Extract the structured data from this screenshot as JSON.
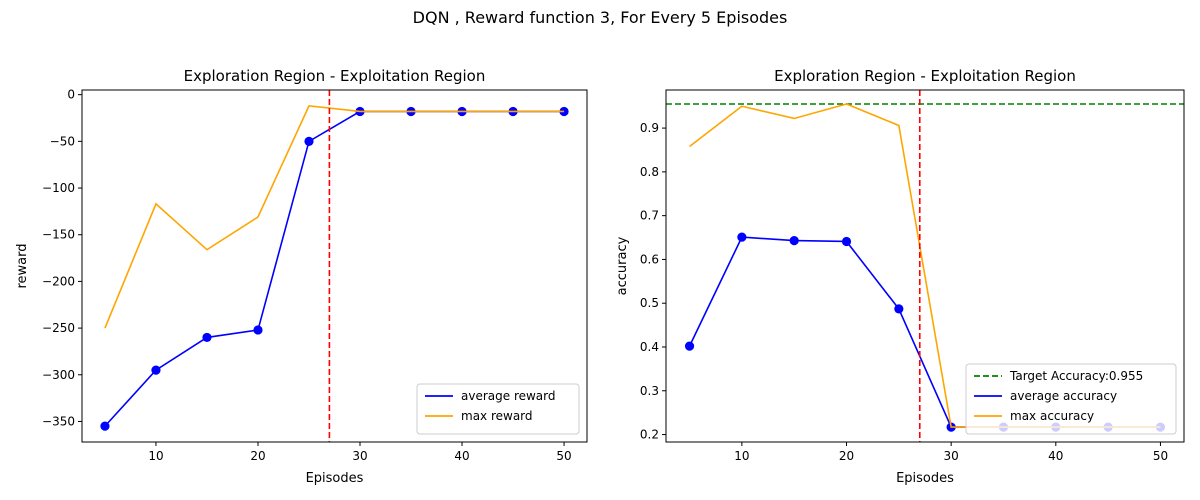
{
  "suptitle": "DQN , Reward function 3, For Every 5 Episodes",
  "chart_data": [
    {
      "type": "line",
      "title": "Exploration Region - Exploitation Region",
      "xlabel": "Episodes",
      "ylabel": "reward",
      "x": [
        5,
        10,
        15,
        20,
        25,
        30,
        35,
        40,
        45,
        50
      ],
      "xlim": [
        2.75,
        52.25
      ],
      "ylim": [
        -372,
        5
      ],
      "xticks": [
        10,
        20,
        30,
        40,
        50
      ],
      "yticks": [
        0,
        -50,
        -100,
        -150,
        -200,
        -250,
        -300,
        -350
      ],
      "grid": false,
      "legend": "lower-right",
      "series": [
        {
          "name": "average reward",
          "color": "#0000ff",
          "markers": true,
          "values": [
            -355,
            -295,
            -260,
            -252,
            -50,
            -18,
            -18,
            -18,
            -18,
            -18
          ]
        },
        {
          "name": "max reward",
          "color": "#ffa500",
          "markers": false,
          "values": [
            -250,
            -117,
            -166,
            -131,
            -12,
            -18,
            -18,
            -18,
            -18,
            -18
          ]
        }
      ],
      "vlines": [
        {
          "x": 27,
          "color": "#ff0000",
          "style": "dashed"
        }
      ],
      "hlines": []
    },
    {
      "type": "line",
      "title": "Exploration Region - Exploitation Region",
      "xlabel": "Episodes",
      "ylabel": "accuracy",
      "x": [
        5,
        10,
        15,
        20,
        25,
        30,
        35,
        40,
        45,
        50
      ],
      "xlim": [
        2.75,
        52.25
      ],
      "ylim": [
        0.183,
        0.987
      ],
      "xticks": [
        10,
        20,
        30,
        40,
        50
      ],
      "yticks": [
        0.2,
        0.3,
        0.4,
        0.5,
        0.6,
        0.7,
        0.8,
        0.9
      ],
      "grid": false,
      "legend": "lower-right",
      "series": [
        {
          "name": "average accuracy",
          "color": "#0000ff",
          "markers": true,
          "values": [
            0.402,
            0.651,
            0.643,
            0.641,
            0.487,
            0.217,
            0.217,
            0.217,
            0.217,
            0.217
          ]
        },
        {
          "name": "max accuracy",
          "color": "#ffa500",
          "markers": false,
          "values": [
            0.858,
            0.95,
            0.922,
            0.955,
            0.906,
            0.217,
            0.217,
            0.217,
            0.217,
            0.217
          ]
        }
      ],
      "vlines": [
        {
          "x": 27,
          "color": "#ff0000",
          "style": "dashed"
        }
      ],
      "hlines": [
        {
          "y": 0.955,
          "color": "#008000",
          "style": "dashed",
          "name": "Target Accuracy:0.955"
        }
      ]
    }
  ]
}
